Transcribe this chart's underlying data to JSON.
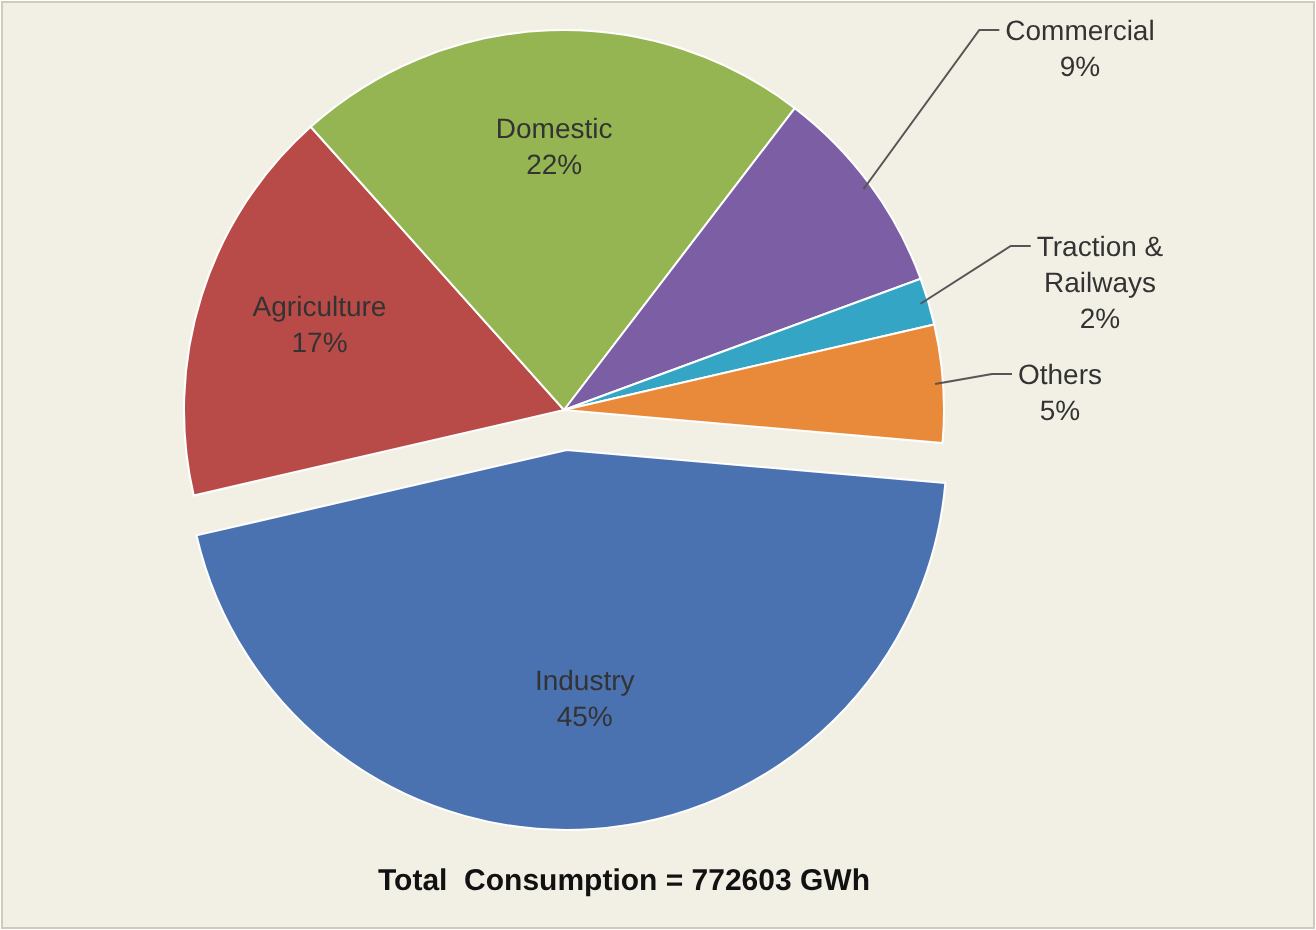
{
  "chart_data": {
    "type": "pie",
    "title": "Total  Consumption = 772603 GWh",
    "categories": [
      "Industry",
      "Agriculture",
      "Domestic",
      "Commercial",
      "Traction & Railways",
      "Others"
    ],
    "values": [
      45,
      17,
      22,
      9,
      2,
      5
    ],
    "colors": [
      "#4a72b0",
      "#b84b47",
      "#95b552",
      "#7b5ea3",
      "#35a5c6",
      "#e98a3b"
    ],
    "value_labels": [
      "45%",
      "17%",
      "22%",
      "9%",
      "2%",
      "5%"
    ]
  }
}
